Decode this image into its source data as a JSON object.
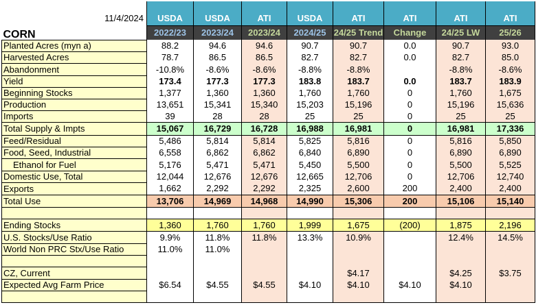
{
  "header": {
    "date": "11/4/2024",
    "title": "CORN",
    "sources": [
      "USDA",
      "USDA",
      "ATI",
      "USDA",
      "ATI",
      "ATI",
      "ATI",
      "ATI"
    ],
    "periods": [
      "2022/23",
      "2023/24",
      "2023/24",
      "2024/25",
      "24/25 Trend",
      "Change",
      "24/25 LW",
      "25/26"
    ]
  },
  "colors": {
    "header_blue": "#4bacc6",
    "header_dark": "#404040",
    "label_bg": "#ffffcc",
    "ati_bg": "#fce4d6",
    "supply_bg": "#ccffcc",
    "use_bg": "#f8cbad",
    "ending_bg": "#ffff99"
  },
  "rows": [
    {
      "label": "Planted Acres (myn a)",
      "values": [
        "88.2",
        "94.6",
        "94.6",
        "90.7",
        "90.7",
        "0.0",
        "90.7",
        "93.0"
      ]
    },
    {
      "label": "Harvested Acres",
      "values": [
        "78.7",
        "86.5",
        "86.5",
        "82.7",
        "82.7",
        "0.0",
        "82.7",
        "85.0"
      ]
    },
    {
      "label": "Abandonment",
      "values": [
        "-10.8%",
        "-8.6%",
        "-8.6%",
        "-8.8%",
        "-8.8%",
        "",
        "-8.8%",
        "-8.6%"
      ]
    },
    {
      "label": "Yield",
      "values": [
        "173.4",
        "177.3",
        "177.3",
        "183.8",
        "183.7",
        "0.0",
        "183.7",
        "183.9"
      ]
    },
    {
      "label": "Beginning Stocks",
      "values": [
        "1,377",
        "1,360",
        "1,360",
        "1,760",
        "1,760",
        "0",
        "1,760",
        "1,675"
      ]
    },
    {
      "label": "Production",
      "values": [
        "13,651",
        "15,341",
        "15,340",
        "15,203",
        "15,196",
        "0",
        "15,196",
        "15,636"
      ]
    },
    {
      "label": "Imports",
      "values": [
        "39",
        "28",
        "28",
        "25",
        "25",
        "0",
        "25",
        "25"
      ]
    },
    {
      "label": "Total Supply & Impts",
      "values": [
        "15,067",
        "16,729",
        "16,728",
        "16,988",
        "16,981",
        "0",
        "16,981",
        "17,336"
      ]
    },
    {
      "label": "Feed/Residual",
      "values": [
        "5,486",
        "5,814",
        "5,814",
        "5,825",
        "5,816",
        "0",
        "5,816",
        "5,850"
      ]
    },
    {
      "label": "Food, Seed, Industrial",
      "values": [
        "6,558",
        "6,862",
        "6,862",
        "6,840",
        "6,890",
        "0",
        "6,890",
        "6,890"
      ]
    },
    {
      "label": "Ethanol for Fuel",
      "values": [
        "5,176",
        "5,471",
        "5,471",
        "5,450",
        "5,500",
        "0",
        "5,500",
        "5,525"
      ]
    },
    {
      "label": "Domestic Use, Total",
      "values": [
        "12,044",
        "12,676",
        "12,676",
        "12,665",
        "12,706",
        "0",
        "12,706",
        "12,740"
      ]
    },
    {
      "label": "Exports",
      "values": [
        "1,662",
        "2,292",
        "2,292",
        "2,325",
        "2,600",
        "200",
        "2,400",
        "2,400"
      ]
    },
    {
      "label": "Total Use",
      "values": [
        "13,706",
        "14,969",
        "14,968",
        "14,990",
        "15,306",
        "200",
        "15,106",
        "15,140"
      ]
    },
    {
      "label": "",
      "values": [
        "",
        "",
        "",
        "",
        "",
        "",
        "",
        ""
      ]
    },
    {
      "label": "Ending Stocks",
      "values": [
        "1,360",
        "1,760",
        "1,760",
        "1,999",
        "1,675",
        "(200)",
        "1,875",
        "2,196"
      ]
    },
    {
      "label": "U.S. Stocks/Use Ratio",
      "values": [
        "9.9%",
        "11.8%",
        "11.8%",
        "13.3%",
        "10.9%",
        "",
        "12.4%",
        "14.5%"
      ]
    },
    {
      "label": "World Non PRC Stx/Use Ratio",
      "values": [
        "11.0%",
        "11.0%",
        "",
        "",
        "",
        "",
        "",
        ""
      ]
    },
    {
      "label": "",
      "values": [
        "",
        "",
        "",
        "",
        "",
        "",
        "",
        ""
      ]
    },
    {
      "label": "CZ, Current",
      "values": [
        "",
        "",
        "",
        "",
        "$4.17",
        "",
        "$4.25",
        "$3.75"
      ]
    },
    {
      "label": "Expected Avg Farm Price",
      "values": [
        "$6.54",
        "$4.55",
        "$4.55",
        "$4.10",
        "$4.10",
        "$4.10",
        "$4.10",
        ""
      ]
    },
    {
      "label": "",
      "values": [
        "",
        "",
        "",
        "",
        "",
        "",
        "",
        ""
      ]
    }
  ]
}
